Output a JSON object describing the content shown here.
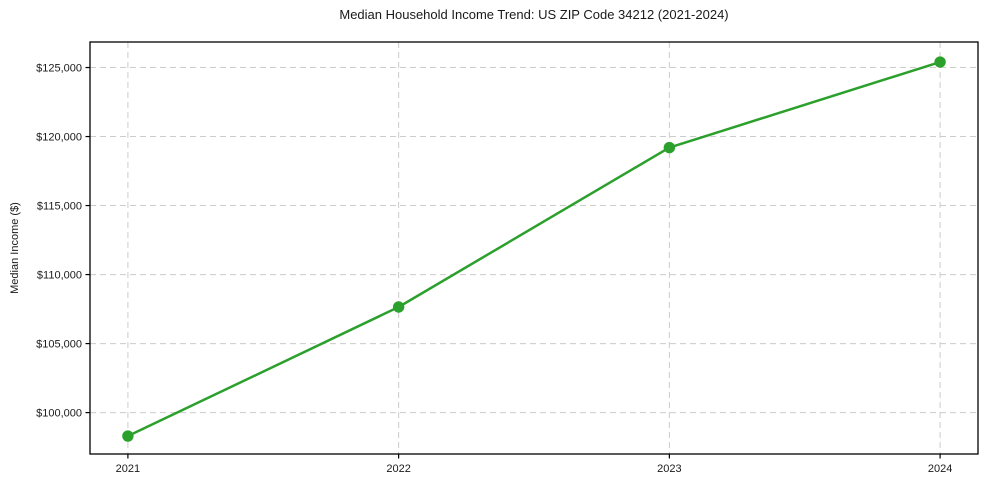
{
  "chart_data": {
    "type": "line",
    "title": "Median Household Income Trend: US ZIP Code 34212 (2021-2024)",
    "xlabel": "",
    "ylabel": "Median Income ($)",
    "x": [
      2021,
      2022,
      2023,
      2024
    ],
    "values": [
      98300,
      107650,
      119200,
      125400
    ],
    "xtick_labels": [
      "2021",
      "2022",
      "2023",
      "2024"
    ],
    "yticks": [
      100000,
      105000,
      110000,
      115000,
      120000,
      125000
    ],
    "ytick_labels": [
      "$100,000",
      "$105,000",
      "$110,000",
      "$115,000",
      "$120,000",
      "$125,000"
    ],
    "xlim": [
      2020.86,
      2024.14
    ],
    "ylim": [
      97000,
      126850
    ],
    "grid": true,
    "grid_line_style": "dashed",
    "legend_position": "none",
    "colors": {
      "line": "#2ca02c",
      "marker": "#2ca02c",
      "grid": "#cccccc",
      "axis": "#000000",
      "text": "#1a1a1a",
      "background": "#ffffff"
    }
  }
}
